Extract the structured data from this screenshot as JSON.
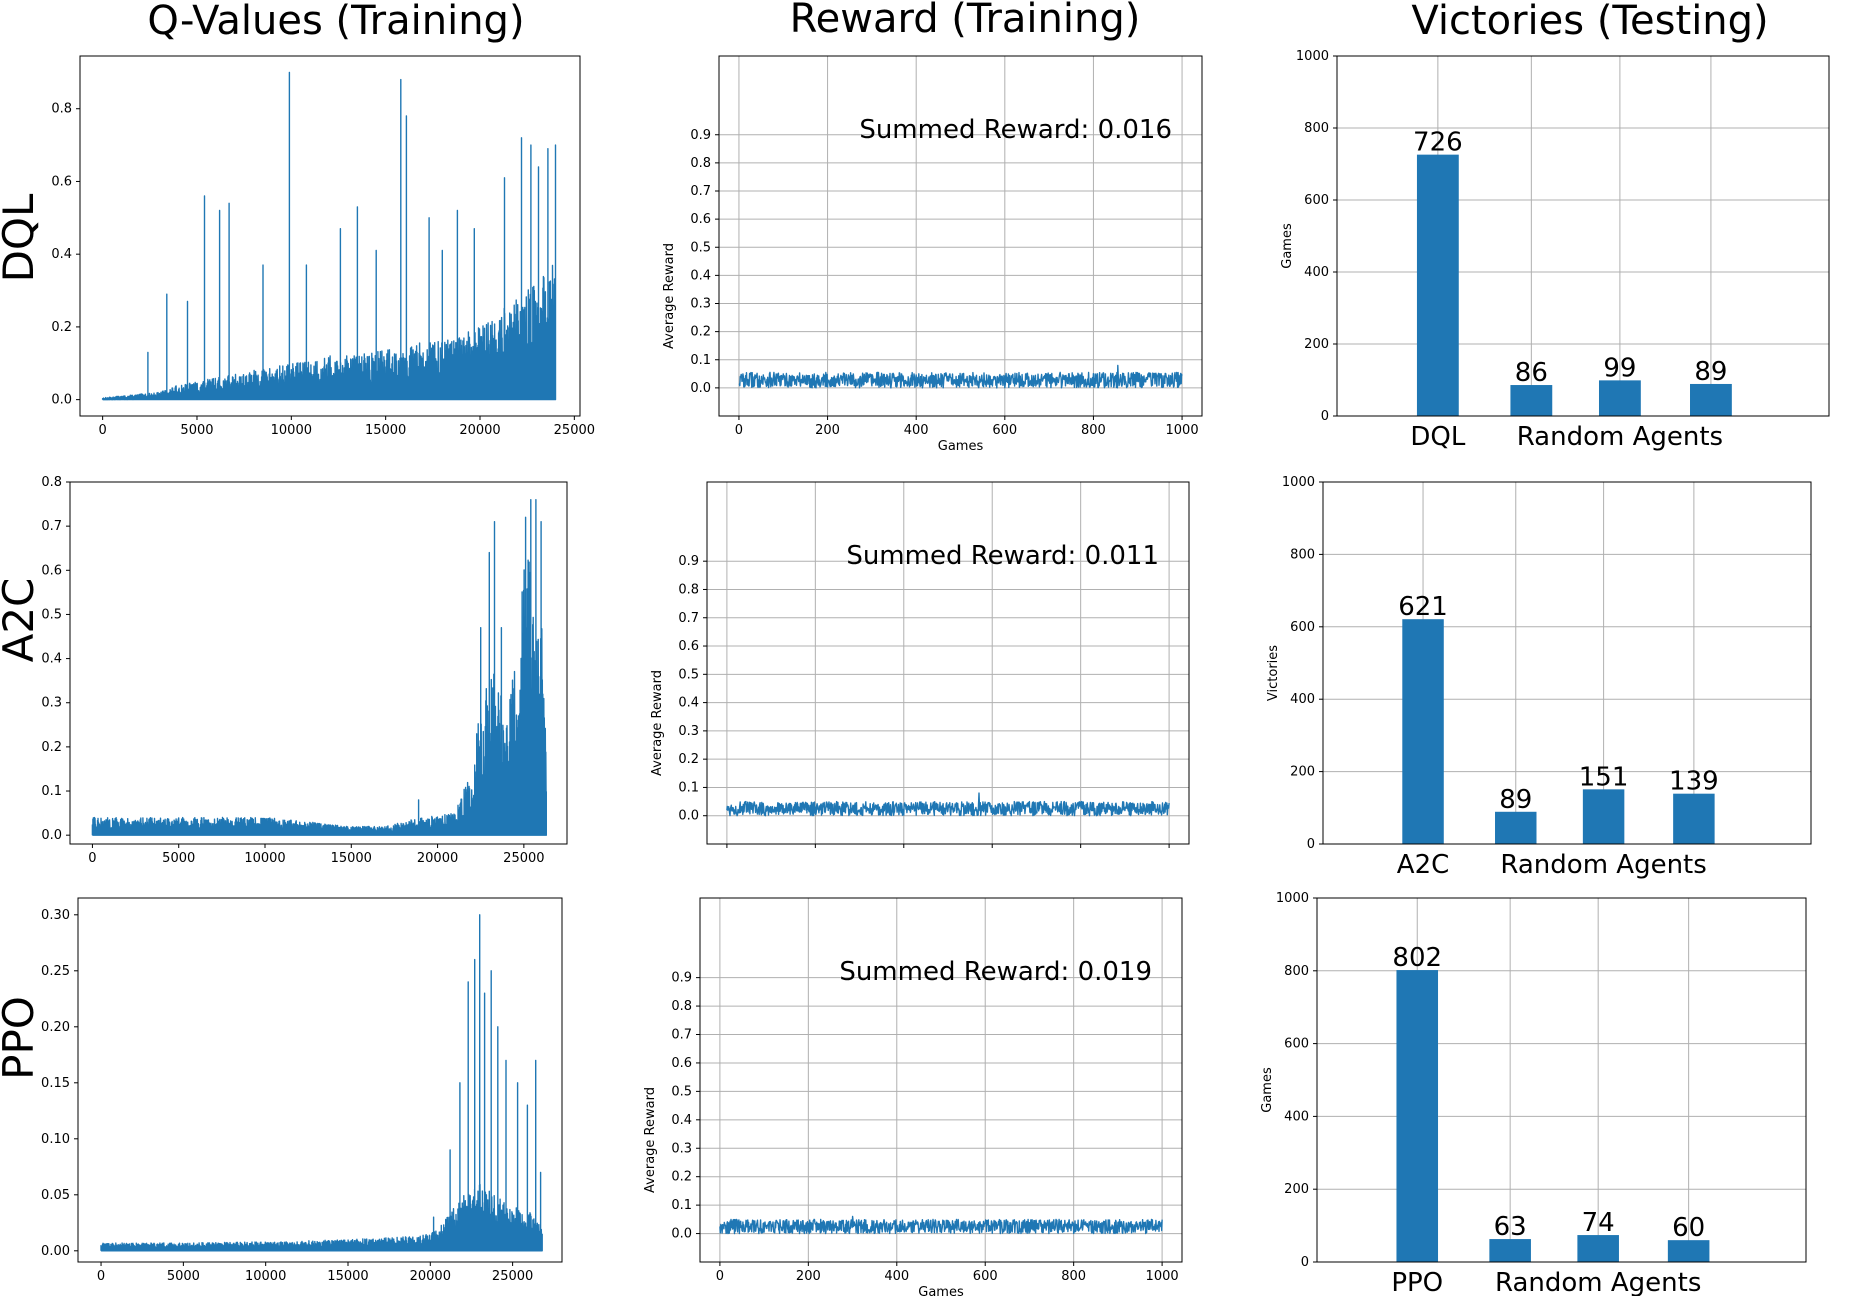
{
  "column_titles": [
    "Q-Values (Training)",
    "Reward (Training)",
    "Victories (Testing)"
  ],
  "row_labels": [
    "DQL",
    "A2C",
    "PPO"
  ],
  "colors": {
    "series": "#1f77b4",
    "grid": "#b0b0b0",
    "axis": "#000000"
  },
  "chart_data": [
    {
      "type": "line",
      "panel": "DQL q-values",
      "title": "",
      "xlabel": "",
      "ylabel": "",
      "xlim": [
        -1200,
        25300
      ],
      "ylim": [
        -0.045,
        0.945
      ],
      "xticks": [
        0,
        5000,
        10000,
        15000,
        20000,
        25000
      ],
      "xtick_labels": [
        "0",
        "5000",
        "10000",
        "15000",
        "20000",
        "25000"
      ],
      "yticks": [
        0,
        0.2,
        0.4,
        0.6,
        0.8
      ],
      "ytick_labels": [
        "0.0",
        "0.2",
        "0.4",
        "0.6",
        "0.8"
      ],
      "grid": false,
      "envelope": {
        "x": [
          0,
          1000,
          2000,
          3000,
          4000,
          5000,
          6000,
          7000,
          8000,
          9000,
          10000,
          11000,
          12000,
          13000,
          14000,
          15000,
          16000,
          17000,
          18000,
          19000,
          20000,
          21000,
          22000,
          23000,
          24000
        ],
        "base": [
          0.005,
          0.01,
          0.015,
          0.02,
          0.04,
          0.05,
          0.06,
          0.07,
          0.08,
          0.09,
          0.1,
          0.11,
          0.12,
          0.12,
          0.13,
          0.14,
          0.15,
          0.16,
          0.16,
          0.18,
          0.2,
          0.24,
          0.28,
          0.32,
          0.4
        ]
      },
      "peaks": [
        {
          "x": 2400,
          "y": 0.13
        },
        {
          "x": 3400,
          "y": 0.29
        },
        {
          "x": 4500,
          "y": 0.27
        },
        {
          "x": 5400,
          "y": 0.56
        },
        {
          "x": 6200,
          "y": 0.52
        },
        {
          "x": 6700,
          "y": 0.54
        },
        {
          "x": 8500,
          "y": 0.37
        },
        {
          "x": 9900,
          "y": 0.9
        },
        {
          "x": 10800,
          "y": 0.37
        },
        {
          "x": 12600,
          "y": 0.47
        },
        {
          "x": 13500,
          "y": 0.53
        },
        {
          "x": 14500,
          "y": 0.41
        },
        {
          "x": 15800,
          "y": 0.88
        },
        {
          "x": 16100,
          "y": 0.78
        },
        {
          "x": 17300,
          "y": 0.5
        },
        {
          "x": 18000,
          "y": 0.41
        },
        {
          "x": 18800,
          "y": 0.52
        },
        {
          "x": 19700,
          "y": 0.47
        },
        {
          "x": 21300,
          "y": 0.61
        },
        {
          "x": 22200,
          "y": 0.72
        },
        {
          "x": 22700,
          "y": 0.7
        },
        {
          "x": 23100,
          "y": 0.64
        },
        {
          "x": 23600,
          "y": 0.69
        },
        {
          "x": 24000,
          "y": 0.7
        }
      ]
    },
    {
      "type": "line",
      "panel": "DQL reward",
      "title": "",
      "xlabel": "Games",
      "ylabel": "Average Reward",
      "xlim": [
        -45,
        1045
      ],
      "ylim": [
        -0.1,
        1.18
      ],
      "xticks": [
        0,
        200,
        400,
        600,
        800,
        1000
      ],
      "xtick_labels": [
        "0",
        "200",
        "400",
        "600",
        "800",
        "1000"
      ],
      "yticks": [
        0,
        0.1,
        0.2,
        0.3,
        0.4,
        0.5,
        0.6,
        0.7,
        0.8,
        0.9
      ],
      "ytick_labels": [
        "0.0",
        "0.1",
        "0.2",
        "0.3",
        "0.4",
        "0.5",
        "0.6",
        "0.7",
        "0.8",
        "0.9"
      ],
      "grid": true,
      "noise_low": 0.0,
      "noise_high": 0.055,
      "spike": {
        "x": 855,
        "y": 0.08
      },
      "annotation": "Summed Reward: 0.016"
    },
    {
      "type": "bar",
      "panel": "DQL victories",
      "title": "",
      "ylabel": "Games",
      "ylim": [
        0,
        1000
      ],
      "yticks": [
        0,
        200,
        400,
        600,
        800,
        1000
      ],
      "ytick_labels": [
        "0",
        "200",
        "400",
        "600",
        "800",
        "1000"
      ],
      "grid": true,
      "values": [
        726,
        86,
        99,
        89
      ],
      "value_labels": [
        "726",
        "86",
        "99",
        "89"
      ],
      "group_labels": [
        "DQL",
        "Random Agents"
      ]
    },
    {
      "type": "line",
      "panel": "A2C q-values",
      "title": "",
      "xlabel": "",
      "ylabel": "",
      "xlim": [
        -1300,
        27500
      ],
      "ylim": [
        -0.02,
        0.8
      ],
      "xticks": [
        0,
        5000,
        10000,
        15000,
        20000,
        25000
      ],
      "xtick_labels": [
        "0",
        "5000",
        "10000",
        "15000",
        "20000",
        "25000"
      ],
      "yticks": [
        0,
        0.1,
        0.2,
        0.3,
        0.4,
        0.5,
        0.6,
        0.7,
        0.8
      ],
      "ytick_labels": [
        "0.0",
        "0.1",
        "0.2",
        "0.3",
        "0.4",
        "0.5",
        "0.6",
        "0.7",
        "0.8"
      ],
      "grid": false,
      "envelope": {
        "x": [
          0,
          2000,
          5000,
          10000,
          15000,
          17000,
          19000,
          21000,
          22000,
          22500,
          23000,
          23500,
          24000,
          24500,
          25000,
          25500,
          26000,
          26300
        ],
        "base": [
          0.04,
          0.04,
          0.04,
          0.04,
          0.02,
          0.02,
          0.04,
          0.05,
          0.15,
          0.3,
          0.4,
          0.35,
          0.25,
          0.4,
          0.6,
          0.65,
          0.6,
          0.2
        ]
      },
      "peaks": [
        {
          "x": 18900,
          "y": 0.08
        },
        {
          "x": 22500,
          "y": 0.47
        },
        {
          "x": 23000,
          "y": 0.64
        },
        {
          "x": 23300,
          "y": 0.71
        },
        {
          "x": 23700,
          "y": 0.47
        },
        {
          "x": 25100,
          "y": 0.72
        },
        {
          "x": 25400,
          "y": 0.76
        },
        {
          "x": 25700,
          "y": 0.76
        },
        {
          "x": 26000,
          "y": 0.71
        }
      ]
    },
    {
      "type": "line",
      "panel": "A2C reward",
      "title": "",
      "xlabel": "",
      "ylabel": "Average Reward",
      "xlim": [
        -45,
        1045
      ],
      "ylim": [
        -0.1,
        1.18
      ],
      "xticks": [
        0,
        200,
        400,
        600,
        800,
        1000
      ],
      "xtick_labels": [],
      "yticks": [
        0,
        0.1,
        0.2,
        0.3,
        0.4,
        0.5,
        0.6,
        0.7,
        0.8,
        0.9
      ],
      "ytick_labels": [
        "0.0",
        "0.1",
        "0.2",
        "0.3",
        "0.4",
        "0.5",
        "0.6",
        "0.7",
        "0.8",
        "0.9"
      ],
      "grid": true,
      "noise_low": 0.0,
      "noise_high": 0.05,
      "spike": {
        "x": 570,
        "y": 0.08
      },
      "annotation": "Summed Reward: 0.011"
    },
    {
      "type": "bar",
      "panel": "A2C victories",
      "title": "",
      "ylabel": "Victories",
      "ylim": [
        0,
        1000
      ],
      "yticks": [
        0,
        200,
        400,
        600,
        800,
        1000
      ],
      "ytick_labels": [
        "0",
        "200",
        "400",
        "600",
        "800",
        "1000"
      ],
      "grid": true,
      "values": [
        621,
        89,
        151,
        139
      ],
      "value_labels": [
        "621",
        "89",
        "151",
        "139"
      ],
      "group_labels": [
        "A2C",
        "Random Agents"
      ]
    },
    {
      "type": "line",
      "panel": "PPO q-values",
      "title": "",
      "xlabel": "",
      "ylabel": "",
      "xlim": [
        -1400,
        28000
      ],
      "ylim": [
        -0.01,
        0.315
      ],
      "xticks": [
        0,
        5000,
        10000,
        15000,
        20000,
        25000
      ],
      "xtick_labels": [
        "0",
        "5000",
        "10000",
        "15000",
        "20000",
        "25000"
      ],
      "yticks": [
        0,
        0.05,
        0.1,
        0.15,
        0.2,
        0.25,
        0.3
      ],
      "ytick_labels": [
        "0.00",
        "0.05",
        "0.10",
        "0.15",
        "0.20",
        "0.25",
        "0.30"
      ],
      "grid": false,
      "envelope": {
        "x": [
          0,
          5000,
          10000,
          15000,
          18000,
          20000,
          21000,
          22000,
          23000,
          24000,
          25000,
          26000,
          26800
        ],
        "base": [
          0.007,
          0.007,
          0.008,
          0.01,
          0.012,
          0.015,
          0.03,
          0.05,
          0.06,
          0.05,
          0.04,
          0.035,
          0.02
        ]
      },
      "peaks": [
        {
          "x": 20200,
          "y": 0.03
        },
        {
          "x": 21200,
          "y": 0.09
        },
        {
          "x": 21800,
          "y": 0.15
        },
        {
          "x": 22300,
          "y": 0.24
        },
        {
          "x": 22700,
          "y": 0.26
        },
        {
          "x": 23000,
          "y": 0.3
        },
        {
          "x": 23300,
          "y": 0.23
        },
        {
          "x": 23700,
          "y": 0.25
        },
        {
          "x": 24100,
          "y": 0.2
        },
        {
          "x": 24600,
          "y": 0.17
        },
        {
          "x": 25300,
          "y": 0.15
        },
        {
          "x": 25900,
          "y": 0.13
        },
        {
          "x": 26400,
          "y": 0.17
        },
        {
          "x": 26700,
          "y": 0.07
        }
      ]
    },
    {
      "type": "line",
      "panel": "PPO reward",
      "title": "",
      "xlabel": "Games",
      "ylabel": "Average Reward",
      "xlim": [
        -45,
        1045
      ],
      "ylim": [
        -0.1,
        1.18
      ],
      "xticks": [
        0,
        200,
        400,
        600,
        800,
        1000
      ],
      "xtick_labels": [
        "0",
        "200",
        "400",
        "600",
        "800",
        "1000"
      ],
      "yticks": [
        0,
        0.1,
        0.2,
        0.3,
        0.4,
        0.5,
        0.6,
        0.7,
        0.8,
        0.9
      ],
      "ytick_labels": [
        "0.0",
        "0.1",
        "0.2",
        "0.3",
        "0.4",
        "0.5",
        "0.6",
        "0.7",
        "0.8",
        "0.9"
      ],
      "grid": true,
      "noise_low": 0.0,
      "noise_high": 0.05,
      "spike": {
        "x": 300,
        "y": 0.06
      },
      "annotation": "Summed Reward: 0.019"
    },
    {
      "type": "bar",
      "panel": "PPO victories",
      "title": "",
      "ylabel": "Games",
      "ylim": [
        0,
        1000
      ],
      "yticks": [
        0,
        200,
        400,
        600,
        800,
        1000
      ],
      "ytick_labels": [
        "0",
        "200",
        "400",
        "600",
        "800",
        "1000"
      ],
      "grid": true,
      "values": [
        802,
        63,
        74,
        60
      ],
      "value_labels": [
        "802",
        "63",
        "74",
        "60"
      ],
      "group_labels": [
        "PPO",
        "Random Agents"
      ]
    }
  ]
}
